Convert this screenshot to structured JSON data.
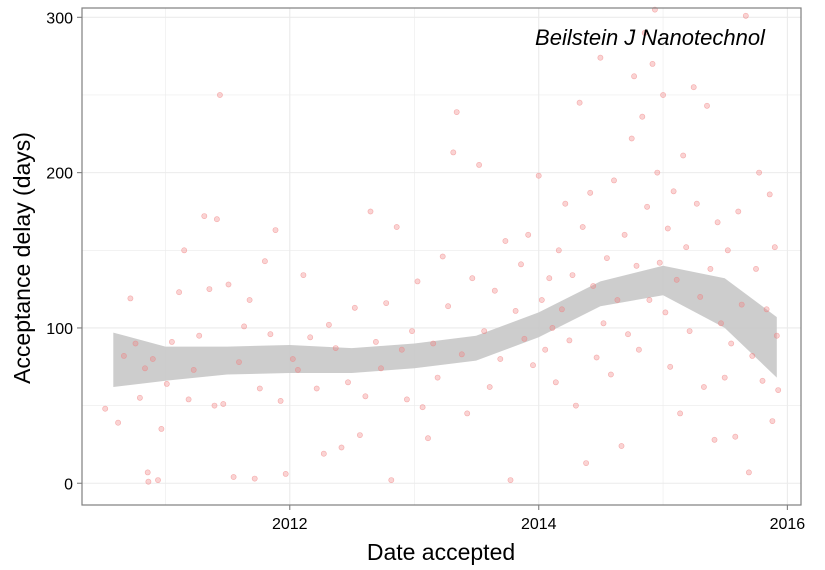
{
  "chart_data": {
    "type": "scatter",
    "title": "",
    "xlabel": "Date accepted",
    "ylabel": "Acceptance delay (days)",
    "annotation": "Beilstein J Nanotechnol",
    "xlim": [
      "2010-05-01",
      "2016-02-10"
    ],
    "ylim": [
      -14,
      306
    ],
    "x_ticks": [
      {
        "value": "2012-01-01",
        "label": "2012"
      },
      {
        "value": "2014-01-01",
        "label": "2014"
      },
      {
        "value": "2016-01-01",
        "label": "2016"
      }
    ],
    "y_ticks": [
      {
        "value": 0,
        "label": "0"
      },
      {
        "value": 100,
        "label": "100"
      },
      {
        "value": 200,
        "label": "200"
      },
      {
        "value": 300,
        "label": "300"
      }
    ],
    "grid": true,
    "colors": {
      "points": "#f08080",
      "point_opacity": 0.35,
      "band": "#c8c8c8",
      "grid": "#ebebeb",
      "panel_border": "#7f7f7f"
    },
    "points": [
      [
        "2010-07-08",
        48
      ],
      [
        "2010-08-15",
        39
      ],
      [
        "2010-09-01",
        82
      ],
      [
        "2010-09-20",
        119
      ],
      [
        "2010-10-05",
        90
      ],
      [
        "2010-10-18",
        55
      ],
      [
        "2010-11-02",
        74
      ],
      [
        "2010-11-10",
        7
      ],
      [
        "2010-11-12",
        1
      ],
      [
        "2010-11-25",
        80
      ],
      [
        "2010-12-10",
        2
      ],
      [
        "2010-12-20",
        35
      ],
      [
        "2011-01-05",
        64
      ],
      [
        "2011-01-20",
        91
      ],
      [
        "2011-02-10",
        123
      ],
      [
        "2011-02-25",
        150
      ],
      [
        "2011-03-10",
        54
      ],
      [
        "2011-03-25",
        73
      ],
      [
        "2011-04-10",
        95
      ],
      [
        "2011-04-25",
        172
      ],
      [
        "2011-05-10",
        125
      ],
      [
        "2011-05-25",
        50
      ],
      [
        "2011-06-01",
        170
      ],
      [
        "2011-06-10",
        250
      ],
      [
        "2011-06-20",
        51
      ],
      [
        "2011-07-05",
        128
      ],
      [
        "2011-07-20",
        4
      ],
      [
        "2011-08-05",
        78
      ],
      [
        "2011-08-20",
        101
      ],
      [
        "2011-09-05",
        118
      ],
      [
        "2011-09-20",
        3
      ],
      [
        "2011-10-05",
        61
      ],
      [
        "2011-10-20",
        143
      ],
      [
        "2011-11-05",
        96
      ],
      [
        "2011-11-20",
        163
      ],
      [
        "2011-12-05",
        53
      ],
      [
        "2011-12-20",
        6
      ],
      [
        "2012-01-10",
        80
      ],
      [
        "2012-01-25",
        73
      ],
      [
        "2012-02-10",
        134
      ],
      [
        "2012-03-01",
        94
      ],
      [
        "2012-03-20",
        61
      ],
      [
        "2012-04-10",
        19
      ],
      [
        "2012-04-25",
        102
      ],
      [
        "2012-05-15",
        87
      ],
      [
        "2012-06-01",
        23
      ],
      [
        "2012-06-20",
        65
      ],
      [
        "2012-07-10",
        113
      ],
      [
        "2012-07-25",
        31
      ],
      [
        "2012-08-10",
        56
      ],
      [
        "2012-08-25",
        175
      ],
      [
        "2012-09-10",
        91
      ],
      [
        "2012-09-25",
        74
      ],
      [
        "2012-10-10",
        116
      ],
      [
        "2012-10-25",
        2
      ],
      [
        "2012-11-10",
        165
      ],
      [
        "2012-11-25",
        86
      ],
      [
        "2012-12-10",
        54
      ],
      [
        "2012-12-25",
        98
      ],
      [
        "2013-01-10",
        130
      ],
      [
        "2013-01-25",
        49
      ],
      [
        "2013-02-10",
        29
      ],
      [
        "2013-02-25",
        90
      ],
      [
        "2013-03-10",
        68
      ],
      [
        "2013-03-25",
        146
      ],
      [
        "2013-04-10",
        114
      ],
      [
        "2013-04-25",
        213
      ],
      [
        "2013-05-05",
        239
      ],
      [
        "2013-05-20",
        83
      ],
      [
        "2013-06-05",
        45
      ],
      [
        "2013-06-20",
        132
      ],
      [
        "2013-07-10",
        205
      ],
      [
        "2013-07-25",
        98
      ],
      [
        "2013-08-10",
        62
      ],
      [
        "2013-08-25",
        124
      ],
      [
        "2013-09-10",
        80
      ],
      [
        "2013-09-25",
        156
      ],
      [
        "2013-10-10",
        2
      ],
      [
        "2013-10-25",
        111
      ],
      [
        "2013-11-10",
        141
      ],
      [
        "2013-11-20",
        93
      ],
      [
        "2013-12-01",
        160
      ],
      [
        "2013-12-15",
        76
      ],
      [
        "2014-01-01",
        198
      ],
      [
        "2014-01-10",
        118
      ],
      [
        "2014-01-20",
        86
      ],
      [
        "2014-02-01",
        132
      ],
      [
        "2014-02-10",
        100
      ],
      [
        "2014-02-20",
        65
      ],
      [
        "2014-03-01",
        150
      ],
      [
        "2014-03-10",
        112
      ],
      [
        "2014-03-20",
        180
      ],
      [
        "2014-04-01",
        92
      ],
      [
        "2014-04-10",
        134
      ],
      [
        "2014-04-20",
        50
      ],
      [
        "2014-05-01",
        245
      ],
      [
        "2014-05-10",
        165
      ],
      [
        "2014-05-20",
        13
      ],
      [
        "2014-06-01",
        187
      ],
      [
        "2014-06-10",
        127
      ],
      [
        "2014-06-20",
        81
      ],
      [
        "2014-07-01",
        274
      ],
      [
        "2014-07-10",
        103
      ],
      [
        "2014-07-20",
        145
      ],
      [
        "2014-08-01",
        70
      ],
      [
        "2014-08-10",
        195
      ],
      [
        "2014-08-20",
        118
      ],
      [
        "2014-09-01",
        24
      ],
      [
        "2014-09-10",
        160
      ],
      [
        "2014-09-20",
        96
      ],
      [
        "2014-10-01",
        222
      ],
      [
        "2014-10-08",
        262
      ],
      [
        "2014-10-15",
        140
      ],
      [
        "2014-10-22",
        86
      ],
      [
        "2014-11-01",
        236
      ],
      [
        "2014-11-08",
        290
      ],
      [
        "2014-11-15",
        178
      ],
      [
        "2014-11-22",
        118
      ],
      [
        "2014-12-01",
        270
      ],
      [
        "2014-12-08",
        305
      ],
      [
        "2014-12-15",
        200
      ],
      [
        "2014-12-22",
        142
      ],
      [
        "2015-01-01",
        250
      ],
      [
        "2015-01-08",
        110
      ],
      [
        "2015-01-15",
        164
      ],
      [
        "2015-01-22",
        75
      ],
      [
        "2015-02-01",
        188
      ],
      [
        "2015-02-10",
        131
      ],
      [
        "2015-02-20",
        45
      ],
      [
        "2015-03-01",
        211
      ],
      [
        "2015-03-10",
        152
      ],
      [
        "2015-03-20",
        98
      ],
      [
        "2015-04-01",
        255
      ],
      [
        "2015-04-10",
        180
      ],
      [
        "2015-04-20",
        120
      ],
      [
        "2015-05-01",
        62
      ],
      [
        "2015-05-10",
        243
      ],
      [
        "2015-05-20",
        138
      ],
      [
        "2015-06-01",
        28
      ],
      [
        "2015-06-10",
        168
      ],
      [
        "2015-06-20",
        103
      ],
      [
        "2015-07-01",
        68
      ],
      [
        "2015-07-10",
        150
      ],
      [
        "2015-07-20",
        90
      ],
      [
        "2015-08-01",
        30
      ],
      [
        "2015-08-10",
        175
      ],
      [
        "2015-08-20",
        115
      ],
      [
        "2015-09-01",
        301
      ],
      [
        "2015-09-10",
        7
      ],
      [
        "2015-09-20",
        82
      ],
      [
        "2015-10-01",
        138
      ],
      [
        "2015-10-10",
        200
      ],
      [
        "2015-10-20",
        66
      ],
      [
        "2015-11-01",
        112
      ],
      [
        "2015-11-10",
        186
      ],
      [
        "2015-11-18",
        40
      ],
      [
        "2015-11-25",
        152
      ],
      [
        "2015-12-01",
        95
      ],
      [
        "2015-12-05",
        60
      ]
    ],
    "smooth": {
      "x": [
        "2010-08-01",
        "2011-01-01",
        "2011-07-01",
        "2012-01-01",
        "2012-07-01",
        "2013-01-01",
        "2013-07-01",
        "2014-01-01",
        "2014-07-01",
        "2015-01-01",
        "2015-07-01",
        "2015-12-01"
      ],
      "y": [
        80,
        77,
        79,
        80,
        79,
        82,
        87,
        102,
        122,
        131,
        116,
        88
      ],
      "lower": [
        62,
        66,
        70,
        71,
        71,
        74,
        79,
        94,
        114,
        121,
        100,
        68
      ],
      "upper": [
        97,
        88,
        88,
        89,
        87,
        90,
        95,
        110,
        130,
        140,
        132,
        107
      ]
    }
  }
}
